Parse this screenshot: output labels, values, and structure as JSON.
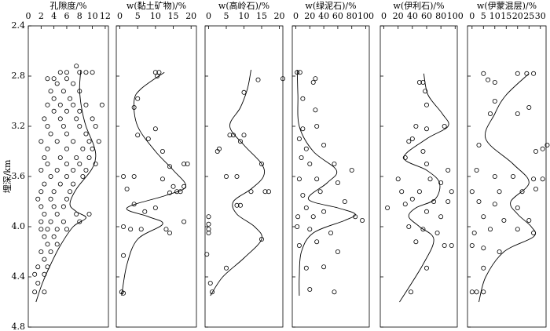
{
  "chart_data": [
    {
      "type": "scatter",
      "title": "孔隙度/%",
      "y_label": "埋深/km",
      "xlim": [
        0,
        12.5
      ],
      "xticks": [
        0,
        2,
        4,
        6,
        8,
        10,
        12
      ],
      "ylim": [
        2.4,
        4.8
      ],
      "yticks": [
        2.4,
        2.8,
        3.2,
        3.6,
        {
          "value": 4,
          "label": "4.0"
        },
        4.4,
        4.8
      ],
      "series": [
        {
          "style": "points",
          "color": "#000000",
          "x": [
            7.5,
            5,
            6,
            8,
            9,
            10,
            3,
            4,
            6,
            4.5,
            7,
            3.5,
            5.5,
            8,
            4,
            6.5,
            3,
            5,
            7,
            9,
            11.5,
            4,
            6,
            8,
            2.5,
            5,
            7.5,
            10,
            3,
            5.5,
            8,
            10.5,
            3.5,
            6,
            9,
            2,
            4.5,
            7,
            9.5,
            11,
            3,
            6,
            8.5,
            10,
            2.5,
            5,
            7.5,
            9.5,
            3,
            6,
            8,
            10.5,
            2,
            4.5,
            7,
            9,
            3.5,
            6,
            8.5,
            2.5,
            5,
            7,
            2,
            4,
            6.5,
            1.5,
            3.5,
            6,
            2,
            4,
            5.5,
            2.5,
            4.5,
            7.5,
            9.5,
            2,
            3.5,
            5.5,
            8,
            2,
            3,
            4.5,
            6,
            2.5,
            4,
            3,
            4.5,
            2,
            3.5,
            2.5,
            1.5,
            3,
            1,
            2.5,
            1.5,
            1,
            2.5
          ],
          "values": [
            2.72,
            2.77,
            2.77,
            2.77,
            2.77,
            2.77,
            2.82,
            2.82,
            2.82,
            2.86,
            2.86,
            2.92,
            2.92,
            2.92,
            2.98,
            2.98,
            3.03,
            3.03,
            3.03,
            3.03,
            3.03,
            3.08,
            3.08,
            3.08,
            3.14,
            3.14,
            3.14,
            3.14,
            3.2,
            3.2,
            3.2,
            3.2,
            3.26,
            3.26,
            3.26,
            3.32,
            3.32,
            3.32,
            3.32,
            3.32,
            3.38,
            3.38,
            3.38,
            3.38,
            3.45,
            3.45,
            3.45,
            3.45,
            3.5,
            3.5,
            3.5,
            3.5,
            3.55,
            3.55,
            3.55,
            3.55,
            3.6,
            3.6,
            3.6,
            3.66,
            3.66,
            3.66,
            3.72,
            3.72,
            3.72,
            3.78,
            3.78,
            3.78,
            3.84,
            3.84,
            3.84,
            3.9,
            3.9,
            3.9,
            3.9,
            3.96,
            3.96,
            3.96,
            3.96,
            4.02,
            4.02,
            4.02,
            4.02,
            4.08,
            4.08,
            4.14,
            4.14,
            4.2,
            4.2,
            4.26,
            4.32,
            4.32,
            4.38,
            4.38,
            4.45,
            4.52,
            4.52
          ]
        },
        {
          "style": "line",
          "color": "#000000",
          "x": [
            8.2,
            8,
            8.3,
            9,
            10.2,
            10.5,
            9.8,
            7.5,
            6.5,
            7.5,
            9,
            7,
            5,
            3.5,
            2.2,
            1.2
          ],
          "values": [
            2.75,
            2.9,
            3.05,
            3.2,
            3.35,
            3.45,
            3.55,
            3.7,
            3.82,
            3.88,
            3.93,
            4.0,
            4.15,
            4.3,
            4.45,
            4.6
          ]
        }
      ]
    },
    {
      "type": "scatter",
      "title": "w(黏土矿物)/%",
      "xlim": [
        -1,
        21.5
      ],
      "xticks": [
        0,
        5,
        10,
        15,
        20
      ],
      "series": [
        {
          "style": "points",
          "color": "#000000",
          "x": [
            10,
            11,
            10.5,
            5,
            4,
            5,
            10,
            8,
            12,
            14,
            19,
            18,
            1,
            4,
            12,
            15,
            18,
            16,
            17,
            14,
            2,
            4,
            10,
            7,
            1,
            3,
            6,
            13,
            14,
            18,
            1,
            0.5,
            1
          ],
          "values": [
            2.77,
            2.77,
            2.8,
            2.98,
            3.05,
            3.27,
            3.22,
            3.3,
            3.4,
            3.52,
            3.5,
            3.5,
            3.6,
            3.6,
            3.62,
            3.68,
            3.68,
            3.72,
            3.72,
            3.73,
            3.7,
            3.82,
            3.85,
            3.88,
            4.0,
            4.02,
            4.02,
            4.02,
            4.05,
            3.96,
            4.23,
            4.52,
            4.53
          ]
        },
        {
          "style": "line",
          "color": "#000000",
          "x": [
            12.5,
            6,
            4,
            5,
            10,
            15,
            18.5,
            13,
            2,
            8,
            12,
            5,
            2,
            0.5
          ],
          "values": [
            2.77,
            2.9,
            3.0,
            3.2,
            3.4,
            3.55,
            3.68,
            3.75,
            3.85,
            3.92,
            3.98,
            4.1,
            4.3,
            4.55
          ]
        }
      ]
    },
    {
      "type": "scatter",
      "title": "w(高岭石)/%",
      "xlim": [
        -1,
        21
      ],
      "xticks": [
        0,
        5,
        10,
        15,
        20
      ],
      "series": [
        {
          "style": "points",
          "color": "#000000",
          "x": [
            21,
            14,
            10,
            6,
            7,
            10,
            9,
            3,
            2.5,
            15,
            5,
            8,
            12,
            16,
            17,
            9,
            8,
            0,
            0,
            0,
            0,
            15,
            -0.5,
            5,
            0.5,
            1
          ],
          "values": [
            2.82,
            2.83,
            2.93,
            3.27,
            3.27,
            3.27,
            3.32,
            3.38,
            3.4,
            3.5,
            3.6,
            3.6,
            3.72,
            3.72,
            3.72,
            3.83,
            3.83,
            3.92,
            3.98,
            4.02,
            4.05,
            4.1,
            4.22,
            4.33,
            4.45,
            4.52
          ]
        },
        {
          "style": "line",
          "color": "#000000",
          "x": [
            12,
            11,
            9,
            6,
            10,
            15,
            15.5,
            12,
            7,
            8,
            13,
            15,
            10,
            4,
            0.5
          ],
          "values": [
            2.75,
            2.9,
            3.05,
            3.2,
            3.35,
            3.5,
            3.6,
            3.7,
            3.8,
            3.9,
            4.0,
            4.1,
            4.25,
            4.4,
            4.55
          ]
        }
      ]
    },
    {
      "type": "scatter",
      "title": "w(绿泥石)/%",
      "xlim": [
        -5,
        105
      ],
      "xticks": [
        0,
        20,
        40,
        60,
        80,
        100
      ],
      "series": [
        {
          "style": "points",
          "color": "#000000",
          "x": [
            2,
            6,
            25,
            28,
            10,
            28,
            10,
            30,
            5,
            15,
            40,
            8,
            20,
            55,
            80,
            5,
            30,
            60,
            10,
            35,
            70,
            15,
            40,
            3,
            25,
            85,
            95,
            2,
            20,
            50,
            5,
            30,
            60,
            15,
            40,
            20,
            55
          ],
          "values": [
            2.77,
            2.77,
            2.85,
            2.82,
            2.98,
            3.07,
            3.22,
            3.2,
            3.3,
            3.38,
            3.35,
            3.45,
            3.5,
            3.5,
            3.55,
            3.62,
            3.62,
            3.65,
            3.75,
            3.72,
            3.8,
            3.85,
            3.88,
            3.92,
            3.92,
            3.92,
            3.95,
            4.0,
            4.02,
            4.05,
            4.15,
            4.12,
            4.2,
            4.33,
            4.32,
            4.5,
            4.52
          ]
        },
        {
          "style": "line",
          "color": "#000000",
          "x": [
            2,
            3,
            5,
            25,
            58,
            45,
            18,
            60,
            85,
            70,
            25,
            8,
            5,
            5
          ],
          "values": [
            2.75,
            2.95,
            3.2,
            3.4,
            3.55,
            3.65,
            3.78,
            3.85,
            3.9,
            3.95,
            4.05,
            4.2,
            4.4,
            4.55
          ]
        }
      ]
    },
    {
      "type": "scatter",
      "title": "w(伊利石)/%",
      "xlim": [
        -5,
        103
      ],
      "xticks": [
        0,
        20,
        40,
        60,
        80,
        100
      ],
      "series": [
        {
          "style": "points",
          "color": "#000000",
          "x": [
            50,
            55,
            58,
            60,
            45,
            60,
            85,
            35,
            40,
            55,
            30,
            60,
            90,
            20,
            65,
            80,
            25,
            50,
            95,
            40,
            70,
            90,
            5,
            30,
            60,
            80,
            35,
            55,
            75,
            45,
            85,
            95,
            60,
            38
          ],
          "values": [
            2.85,
            2.85,
            2.92,
            3.03,
            3.2,
            3.22,
            3.2,
            3.32,
            3.3,
            3.4,
            3.45,
            3.5,
            3.55,
            3.62,
            3.62,
            3.65,
            3.72,
            3.72,
            3.72,
            3.78,
            3.8,
            3.8,
            3.85,
            3.82,
            3.88,
            3.92,
            4.0,
            4.02,
            4.05,
            4.12,
            4.15,
            4.15,
            4.33,
            4.52
          ]
        },
        {
          "style": "line",
          "color": "#000000",
          "x": [
            56,
            62,
            82,
            90,
            60,
            28,
            60,
            78,
            72,
            45,
            35,
            50,
            70,
            55,
            22
          ],
          "values": [
            2.78,
            2.95,
            3.1,
            3.2,
            3.3,
            3.45,
            3.55,
            3.65,
            3.78,
            3.85,
            3.92,
            4.0,
            4.1,
            4.3,
            4.6
          ]
        }
      ]
    },
    {
      "type": "scatter",
      "title": "w(伊蒙混层)/%",
      "xlim": [
        -2,
        32.5
      ],
      "xticks": [
        0,
        5,
        10,
        15,
        20,
        25,
        30
      ],
      "series": [
        {
          "style": "points",
          "color": "#000000",
          "x": [
            5,
            7,
            10,
            20,
            24,
            27,
            10,
            8,
            20,
            25,
            3,
            28,
            31,
            33,
            2,
            10,
            18,
            27,
            31,
            0,
            12,
            22,
            28,
            3,
            10,
            20,
            5,
            14,
            25,
            1,
            8,
            20,
            27,
            0,
            5,
            12,
            5,
            0,
            2,
            5
          ],
          "values": [
            2.78,
            2.83,
            2.85,
            2.78,
            2.78,
            2.78,
            3.0,
            3.1,
            3.1,
            3.05,
            3.35,
            3.4,
            3.38,
            3.35,
            3.55,
            3.6,
            3.6,
            3.62,
            3.62,
            3.72,
            3.72,
            3.72,
            3.7,
            3.8,
            3.82,
            3.85,
            3.92,
            3.95,
            3.95,
            4.05,
            4.02,
            4.02,
            4.05,
            4.15,
            4.17,
            4.2,
            4.33,
            4.52,
            4.52,
            4.52
          ]
        },
        {
          "style": "line",
          "color": "#000000",
          "x": [
            25,
            15,
            10,
            6,
            18,
            25,
            17,
            20,
            26,
            27,
            14,
            6,
            3
          ],
          "values": [
            2.78,
            2.95,
            3.1,
            3.3,
            3.5,
            3.65,
            3.8,
            3.9,
            4.0,
            4.08,
            4.2,
            4.4,
            4.6
          ]
        }
      ]
    }
  ]
}
